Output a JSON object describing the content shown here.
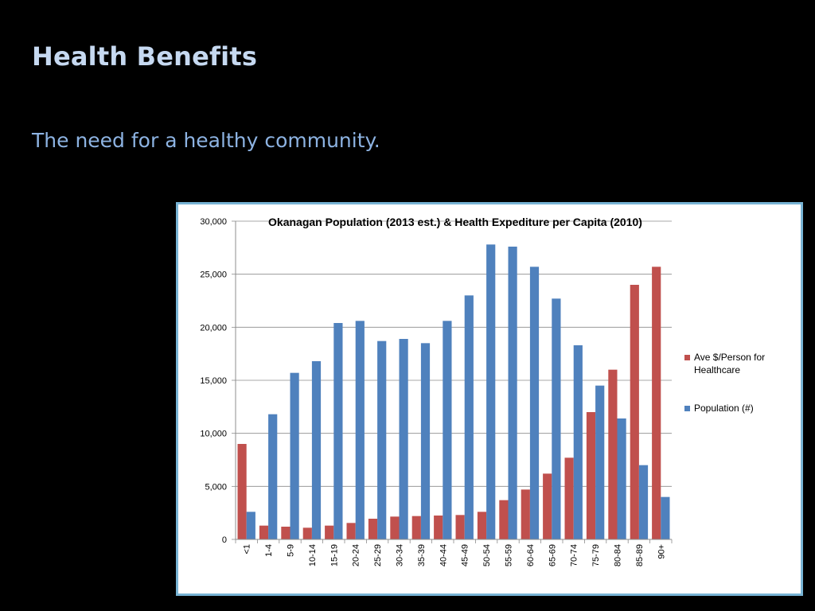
{
  "slide": {
    "title": "Health Benefits",
    "subtitle": "The need for a healthy community."
  },
  "colors": {
    "background": "#000000",
    "title": "#c6d9f1",
    "subtitle": "#8db3e2",
    "chart_border": "#77b3d4"
  },
  "chart_data": {
    "type": "bar",
    "title": "Okanagan Population (2013 est.)  &  Health Expediture per Capita (2010)",
    "xlabel": "",
    "ylabel": "",
    "ylim": [
      0,
      30000
    ],
    "yticks": [
      0,
      5000,
      10000,
      15000,
      20000,
      25000,
      30000
    ],
    "ytick_labels": [
      "0",
      "5,000",
      "10,000",
      "15,000",
      "20,000",
      "25,000",
      "30,000"
    ],
    "grid": true,
    "legend_position": "right",
    "categories": [
      "<1",
      "1-4",
      "5-9",
      "10-14",
      "15-19",
      "20-24",
      "25-29",
      "30-34",
      "35-39",
      "40-44",
      "45-49",
      "50-54",
      "55-59",
      "60-64",
      "65-69",
      "70-74",
      "75-79",
      "80-84",
      "85-89",
      "90+"
    ],
    "series": [
      {
        "name": "Ave $/Person for Healthcare",
        "color": "#c0504d",
        "values": [
          9000,
          1300,
          1200,
          1100,
          1300,
          1550,
          1950,
          2150,
          2200,
          2250,
          2300,
          2600,
          3700,
          4700,
          6200,
          7700,
          12000,
          16000,
          24000,
          25700
        ]
      },
      {
        "name": "Population (#)",
        "color": "#4f81bd",
        "values": [
          2600,
          11800,
          15700,
          16800,
          20400,
          20600,
          18700,
          18900,
          18500,
          20600,
          23000,
          27800,
          27600,
          25700,
          22700,
          18300,
          14500,
          11400,
          7000,
          4000
        ]
      }
    ]
  }
}
